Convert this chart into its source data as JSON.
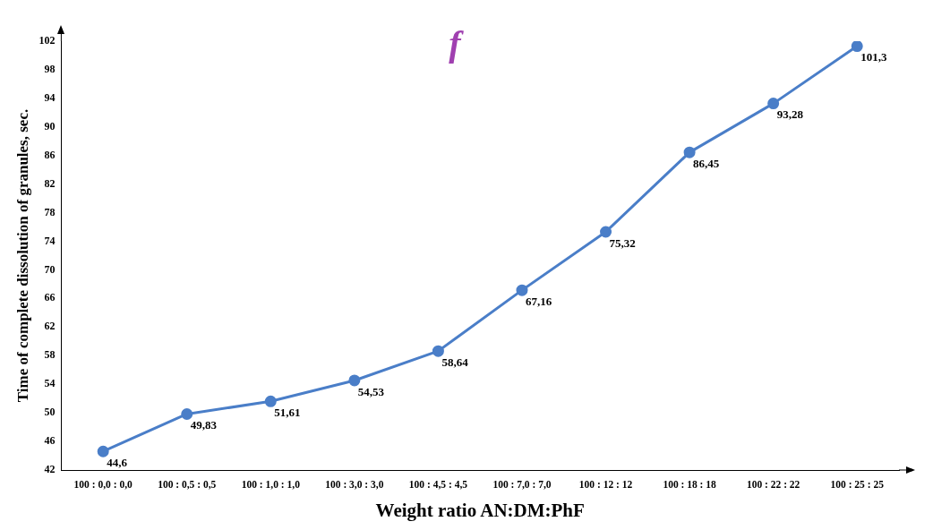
{
  "chart_data": {
    "type": "line",
    "title": "f",
    "xlabel": "Weight ratio AN:DM:PhF",
    "ylabel": "Time of complete dissolution of granules, sec.",
    "categories": [
      "100 : 0,0 : 0,0",
      "100 : 0,5 : 0,5",
      "100 : 1,0 : 1,0",
      "100 : 3,0 : 3,0",
      "100 : 4,5 : 4,5",
      "100 : 7,0 : 7,0",
      "100 : 12 : 12",
      "100 : 18 : 18",
      "100 : 22 : 22",
      "100 : 25 : 25"
    ],
    "series": [
      {
        "color": "#4a7ec8",
        "values": [
          44.6,
          49.83,
          51.61,
          54.53,
          58.64,
          67.16,
          75.32,
          86.45,
          93.28,
          101.3
        ],
        "value_labels": [
          "44,6",
          "49,83",
          "51,61",
          "54,53",
          "58,64",
          "67,16",
          "75,32",
          "86,45",
          "93,28",
          "101,3"
        ]
      }
    ],
    "ylim": [
      42,
      102
    ],
    "yticks": [
      42,
      46,
      50,
      54,
      58,
      62,
      66,
      70,
      74,
      78,
      82,
      86,
      90,
      94,
      98,
      102
    ],
    "grid": false,
    "legend": false,
    "marker": "circle",
    "line_style": "solid"
  }
}
